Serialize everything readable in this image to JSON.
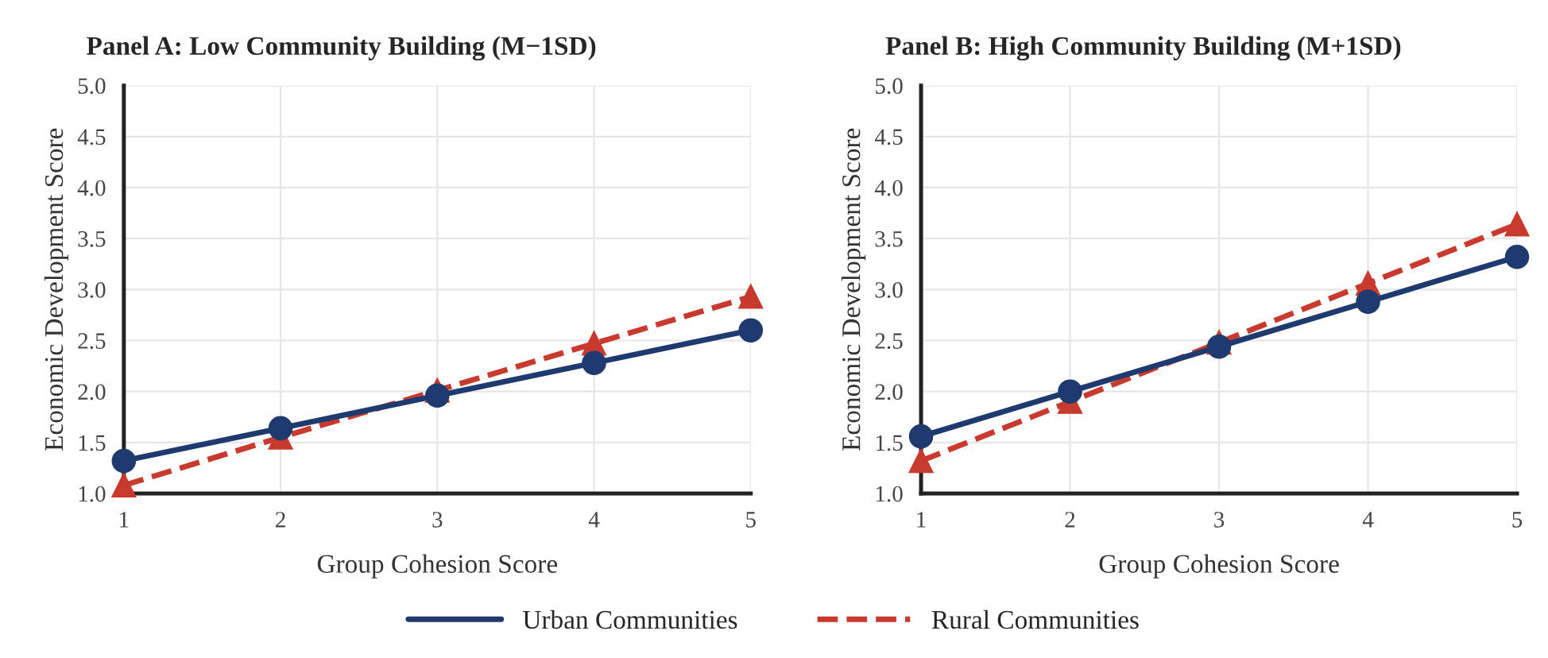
{
  "chart_data": [
    {
      "type": "line",
      "title": "Panel A: Low Community Building (M−1SD)",
      "xlabel": "Group Cohesion Score",
      "ylabel": "Economic Development Score",
      "x": [
        1,
        2,
        3,
        4,
        5
      ],
      "xlim": [
        1,
        5
      ],
      "xticks": [
        1,
        2,
        3,
        4,
        5
      ],
      "ylim": [
        1.0,
        5.0
      ],
      "yticks": [
        {
          "value": 1.0,
          "label": "1.0"
        },
        {
          "value": 1.5,
          "label": "1.5"
        },
        {
          "value": 2.0,
          "label": "2.0"
        },
        {
          "value": 2.5,
          "label": "2.5"
        },
        {
          "value": 3.0,
          "label": "3.0"
        },
        {
          "value": 3.5,
          "label": "3.5"
        },
        {
          "value": 4.0,
          "label": "4.0"
        },
        {
          "value": 4.5,
          "label": "4.5"
        },
        {
          "value": 5.0,
          "label": "5.0"
        }
      ],
      "grid": true,
      "legend": "bottom",
      "series": [
        {
          "name": "Urban Communities",
          "color": "#1f3a6e",
          "marker": "circle",
          "line_style": "solid",
          "values": [
            1.32,
            1.64,
            1.96,
            2.28,
            2.6
          ]
        },
        {
          "name": "Rural Communities",
          "color": "#c83a2e",
          "marker": "triangle",
          "line_style": "dashed",
          "values": [
            1.08,
            1.55,
            2.01,
            2.47,
            2.93
          ]
        }
      ]
    },
    {
      "type": "line",
      "title": "Panel B: High Community Building (M+1SD)",
      "xlabel": "Group Cohesion Score",
      "ylabel": "Economic Development Score",
      "x": [
        1,
        2,
        3,
        4,
        5
      ],
      "xlim": [
        1,
        5
      ],
      "xticks": [
        1,
        2,
        3,
        4,
        5
      ],
      "ylim": [
        1.0,
        5.0
      ],
      "yticks": [
        {
          "value": 1.0,
          "label": "1.0"
        },
        {
          "value": 1.5,
          "label": "1.5"
        },
        {
          "value": 2.0,
          "label": "2.0"
        },
        {
          "value": 2.5,
          "label": "2.5"
        },
        {
          "value": 3.0,
          "label": "3.0"
        },
        {
          "value": 3.5,
          "label": "3.5"
        },
        {
          "value": 4.0,
          "label": "4.0"
        },
        {
          "value": 4.5,
          "label": "4.5"
        },
        {
          "value": 5.0,
          "label": "5.0"
        }
      ],
      "grid": true,
      "series": [
        {
          "color": "#1f3a6e",
          "marker": "circle",
          "line_style": "solid",
          "values": [
            1.56,
            2.0,
            2.44,
            2.88,
            3.32
          ]
        },
        {
          "color": "#c83a2e",
          "marker": "triangle",
          "line_style": "dashed",
          "values": [
            1.32,
            1.9,
            2.48,
            3.06,
            3.64
          ]
        }
      ]
    }
  ]
}
